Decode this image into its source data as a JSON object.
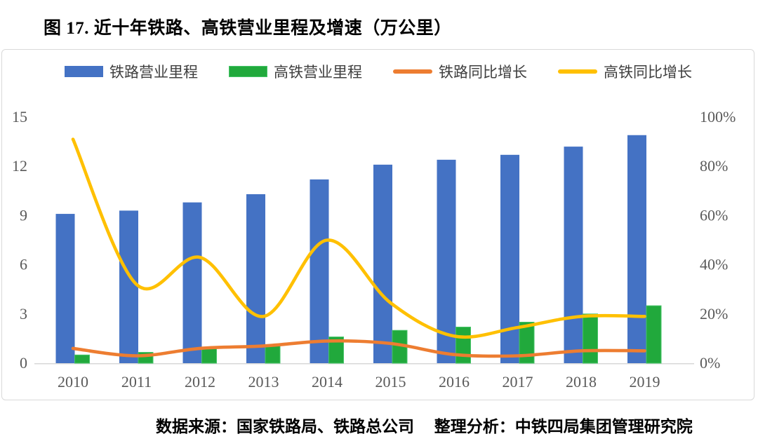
{
  "title": "图 17. 近十年铁路、高铁营业里程及增速（万公里）",
  "source_note": "数据来源：国家铁路局、铁路总公司　 整理分析：中铁四局集团管理研究院",
  "colors": {
    "railway_bar": "#4472C4",
    "hsr_bar": "#21A93C",
    "hsr_bar_edge": "#46C468",
    "railway_growth_line": "#ED7D31",
    "hsr_growth_line": "#FFC000",
    "axis_line": "#D8D8D8",
    "axis_text": "#595959",
    "legend_text": "#3F3F3F",
    "panel_border": "#D9D9D9",
    "title_text": "#000000"
  },
  "chart_data": {
    "type": "bar",
    "subtype": "combo dual-axis: grouped bars (left axis, 万公里) + smoothed lines (right axis, %)",
    "title": "图 17. 近十年铁路、高铁营业里程及增速（万公里）",
    "categories": [
      "2010",
      "2011",
      "2012",
      "2013",
      "2014",
      "2015",
      "2016",
      "2017",
      "2018",
      "2019"
    ],
    "series": [
      {
        "name": "铁路营业里程",
        "kind": "bar",
        "axis": "left",
        "color": "#4472C4",
        "values": [
          9.1,
          9.3,
          9.8,
          10.3,
          11.2,
          12.1,
          12.4,
          12.7,
          13.2,
          13.9
        ]
      },
      {
        "name": "高铁营业里程",
        "kind": "bar",
        "axis": "left",
        "color": "#21A93C",
        "values": [
          0.5,
          0.66,
          0.9,
          1.1,
          1.6,
          2.0,
          2.2,
          2.5,
          3.0,
          3.5
        ]
      },
      {
        "name": "铁路同比增长",
        "kind": "line",
        "axis": "right",
        "color": "#ED7D31",
        "values": [
          6,
          3,
          6,
          7,
          9,
          8,
          3.5,
          3,
          5,
          5
        ]
      },
      {
        "name": "高铁同比增长",
        "kind": "line",
        "axis": "right",
        "color": "#FFC000",
        "values": [
          91,
          32,
          43,
          19,
          50,
          24.5,
          11,
          14.5,
          19,
          19
        ]
      }
    ],
    "left_axis": {
      "tick_labels": [
        "0",
        "3",
        "6",
        "9",
        "12",
        "15"
      ],
      "tick_values": [
        0,
        3,
        6,
        9,
        12,
        15
      ],
      "range": [
        0,
        15
      ]
    },
    "right_axis": {
      "tick_labels": [
        "0%",
        "20%",
        "40%",
        "60%",
        "80%",
        "100%"
      ],
      "tick_values": [
        0,
        20,
        40,
        60,
        80,
        100
      ],
      "range": [
        0,
        100
      ]
    },
    "grid": false,
    "legend_position": "top"
  }
}
